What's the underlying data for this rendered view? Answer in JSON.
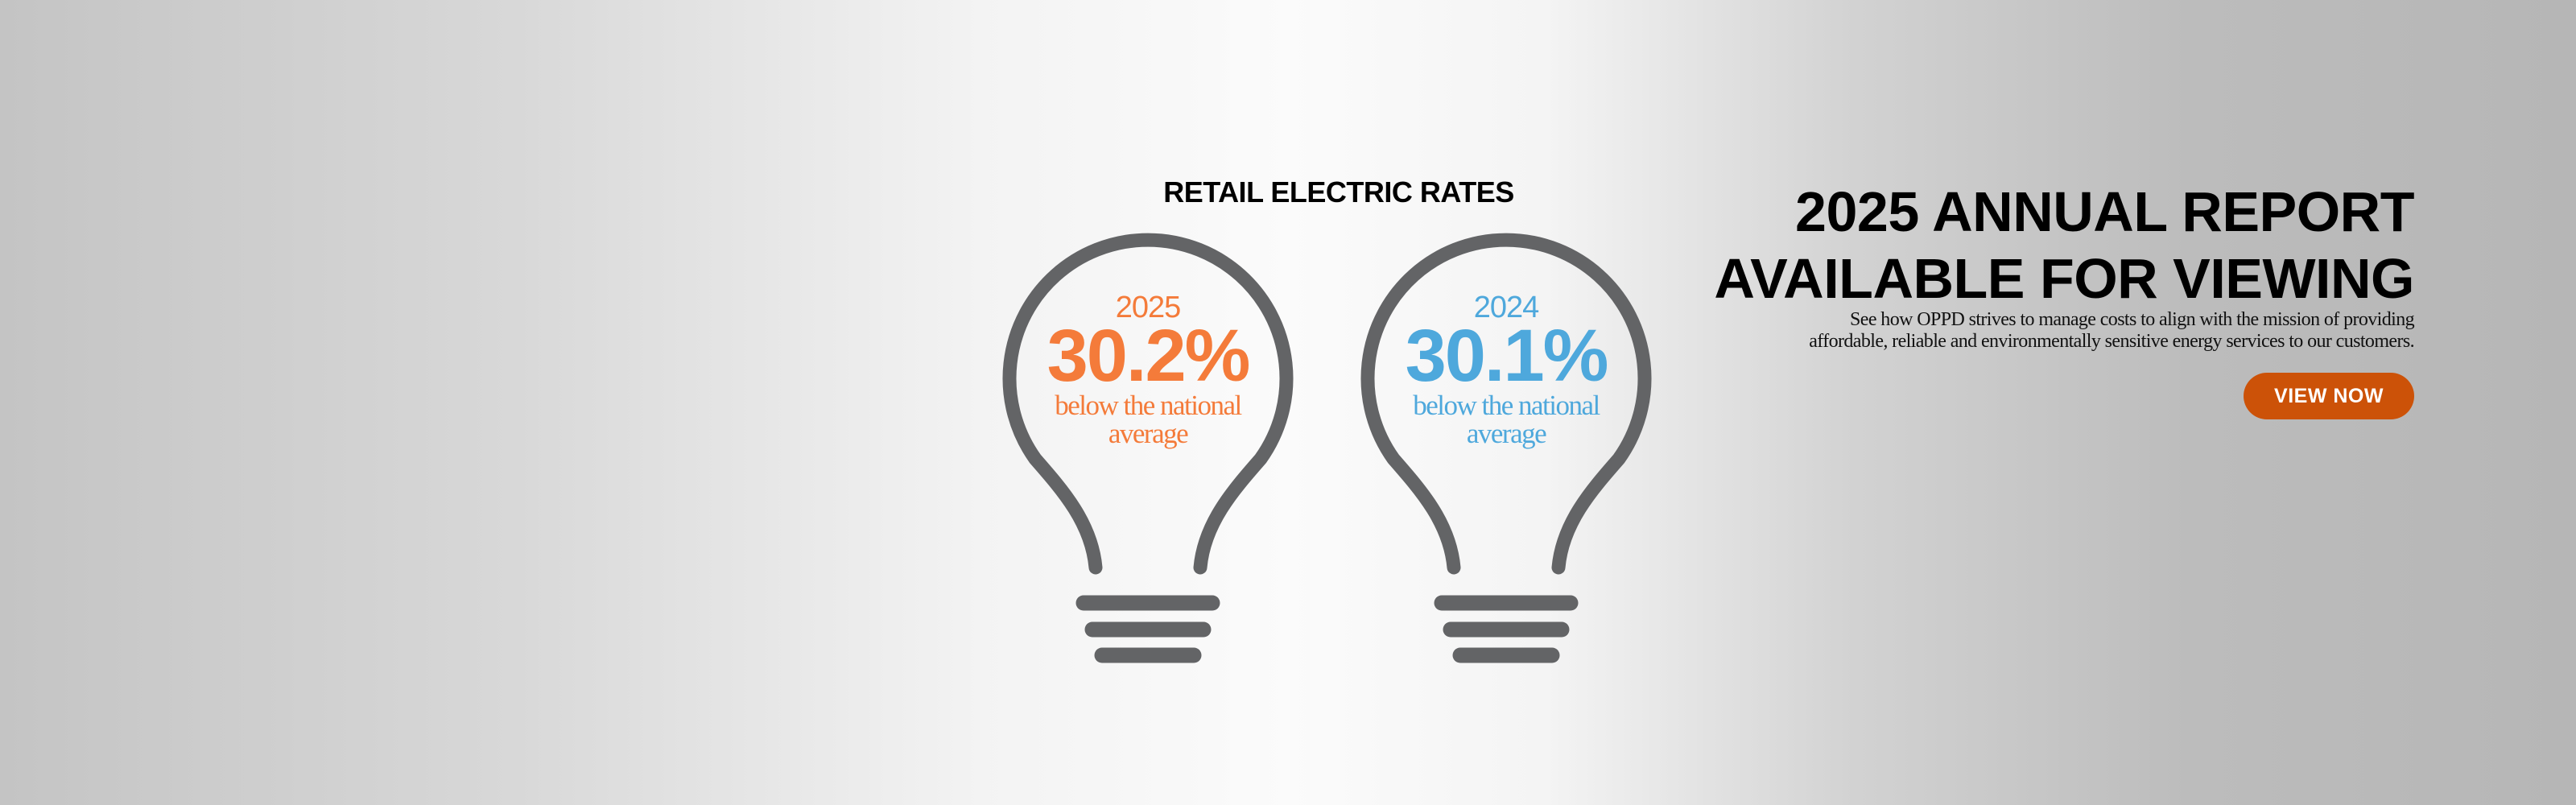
{
  "infographic": {
    "title": "RETAIL ELECTRIC RATES",
    "bulbs": [
      {
        "year": "2025",
        "percent": "30.2%",
        "line1": "below the national",
        "line2": "average",
        "color": "#f47b3a"
      },
      {
        "year": "2024",
        "percent": "30.1%",
        "line1": "below the national",
        "line2": "average",
        "color": "#4ea8dc"
      }
    ],
    "bulb_color": "#636466",
    "icon": "lightbulb-icon"
  },
  "promo": {
    "headline_line1": "2025 ANNUAL REPORT",
    "headline_line2": "AVAILABLE FOR VIEWING",
    "description_line1": "See how OPPD strives to manage costs to align with the mission of providing",
    "description_line2": "affordable, reliable and environmentally sensitive energy services to our customers.",
    "button_label": "VIEW NOW",
    "button_color": "#cc5208"
  }
}
